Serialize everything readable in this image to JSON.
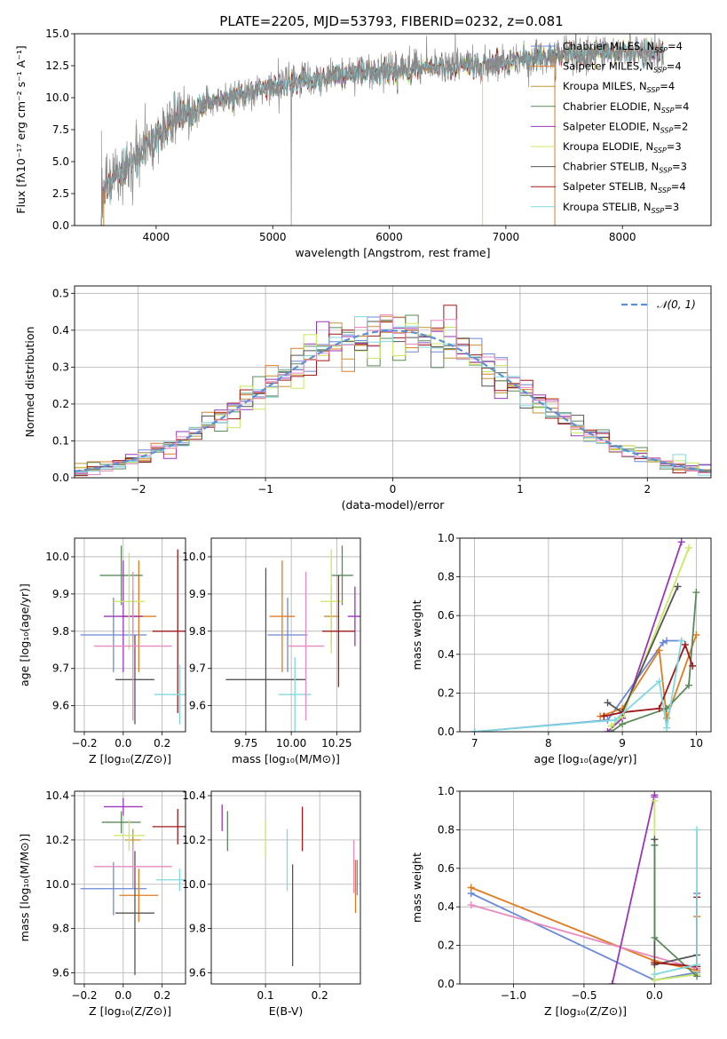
{
  "title": "PLATE=2205, MJD=53793, FIBERID=0232, z=0.081",
  "colors": {
    "c0": "#6a89d8",
    "c1": "#e07b20",
    "c2": "#c79232",
    "c3": "#5a8a5a",
    "c4": "#9a36b8",
    "c5": "#c8e860",
    "c6": "#555555",
    "c7": "#a01818",
    "c8": "#80d8e0",
    "data": "#888888",
    "pink": "#e88ac0",
    "grid": "#b0b0b0"
  },
  "chart_data": [
    {
      "type": "line",
      "title": "PLATE=2205, MJD=53793, FIBERID=0232, z=0.081",
      "xlabel": "wavelength [Angstrom, rest frame]",
      "ylabel": "Flux [fλ10⁻¹⁷ erg cm⁻² s⁻¹ A⁻¹]",
      "xlim": [
        3300,
        8760
      ],
      "ylim": [
        0,
        15
      ],
      "xticks": [
        4000,
        5000,
        6000,
        7000,
        8000
      ],
      "yticks": [
        0.0,
        2.5,
        5.0,
        7.5,
        10.0,
        12.5,
        15.0
      ],
      "legend": "upper-right",
      "data_series": {
        "name": "data",
        "x": [
          3530,
          3600,
          3800,
          4000,
          4200,
          4400,
          4600,
          4800,
          5000,
          5200,
          5400,
          5600,
          5800,
          6000,
          6200,
          6400,
          6600,
          6800,
          7000,
          7200,
          7400,
          7600,
          7800,
          8000,
          8200,
          8350
        ],
        "y": [
          2.5,
          3.3,
          5.1,
          7.0,
          8.5,
          9.3,
          10.0,
          10.5,
          11.0,
          11.3,
          11.5,
          11.8,
          12.0,
          12.1,
          12.2,
          12.4,
          12.6,
          12.7,
          12.8,
          13.0,
          13.2,
          13.4,
          13.5,
          13.6,
          13.6,
          13.5
        ]
      },
      "series": [
        {
          "name": "Chabrier MILES, N",
          "sub": "SSP",
          "suffix": "=4"
        },
        {
          "name": "Salpeter MILES, N",
          "sub": "SSP",
          "suffix": "=4"
        },
        {
          "name": "Kroupa MILES, N",
          "sub": "SSP",
          "suffix": "=4"
        },
        {
          "name": "Chabrier ELODIE, N",
          "sub": "SSP",
          "suffix": "=4"
        },
        {
          "name": "Salpeter ELODIE, N",
          "sub": "SSP",
          "suffix": "=2"
        },
        {
          "name": "Kroupa ELODIE, N",
          "sub": "SSP",
          "suffix": "=3"
        },
        {
          "name": "Chabrier STELIB, N",
          "sub": "SSP",
          "suffix": "=3"
        },
        {
          "name": "Salpeter STELIB, N",
          "sub": "SSP",
          "suffix": "=4"
        },
        {
          "name": "Kroupa STELIB, N",
          "sub": "SSP",
          "suffix": "=3"
        }
      ]
    },
    {
      "type": "bar",
      "xlabel": "(data-model)/error",
      "ylabel": "Normed distribution",
      "xlim": [
        -2.5,
        2.5
      ],
      "ylim": [
        0,
        0.52
      ],
      "xticks": [
        -2,
        -1,
        0,
        1,
        2
      ],
      "yticks": [
        0.0,
        0.1,
        0.2,
        0.3,
        0.4,
        0.5
      ],
      "bin_width": 0.1,
      "bin_start": -2.5,
      "reference": {
        "name": "𝒩(0, 1)",
        "mean": 0,
        "sigma": 1
      },
      "legend": "upper-right"
    },
    {
      "type": "scatter",
      "xlabel": "Z [log₁₀(Z/Z⊙)]",
      "ylabel": "age  [log₁₀(age/yr)]",
      "xlim": [
        -0.25,
        0.32
      ],
      "ylim": [
        9.53,
        10.05
      ],
      "xticks": [
        -0.2,
        0.0,
        0.2
      ],
      "yticks": [
        9.6,
        9.7,
        9.8,
        9.9,
        10.0
      ],
      "points": [
        {
          "x": -0.05,
          "xerr": 0.17,
          "y": 9.79,
          "yerr": 0.1,
          "c": "c0"
        },
        {
          "x": 0.08,
          "xerr": 0.09,
          "y": 9.84,
          "yerr": 0.15,
          "c": "c1"
        },
        {
          "x": 0.05,
          "xerr": 0.05,
          "y": 9.84,
          "yerr": 0.07,
          "c": "c2"
        },
        {
          "x": -0.01,
          "xerr": 0.11,
          "y": 9.95,
          "yerr": 0.08,
          "c": "c3"
        },
        {
          "x": 0.0,
          "xerr": 0.1,
          "y": 9.84,
          "yerr": 0.15,
          "c": "c4"
        },
        {
          "x": 0.03,
          "xerr": 0.08,
          "y": 9.88,
          "yerr": 0.13,
          "c": "c5"
        },
        {
          "x": 0.06,
          "xerr": 0.1,
          "y": 9.67,
          "yerr": 0.12,
          "c": "c6"
        },
        {
          "x": 0.28,
          "xerr": 0.13,
          "y": 9.8,
          "yerr": 0.22,
          "c": "c7"
        },
        {
          "x": 0.29,
          "xerr": 0.13,
          "y": 9.63,
          "yerr": 0.08,
          "c": "c8"
        },
        {
          "x": 0.05,
          "xerr": 0.2,
          "y": 9.76,
          "yerr": 0.2,
          "c": "pink"
        }
      ]
    },
    {
      "type": "scatter",
      "xlabel": "mass [log₁₀(M/M⊙)]",
      "xlim": [
        9.56,
        10.38
      ],
      "ylim": [
        9.53,
        10.05
      ],
      "xticks": [
        9.75,
        10.0,
        10.25
      ],
      "xticklabels": [
        "9.75",
        "10.00",
        "10.25"
      ],
      "yticks": [
        9.6,
        9.7,
        9.8,
        9.9,
        10.0
      ],
      "points": [
        {
          "x": 9.98,
          "xerr": 0.11,
          "y": 9.79,
          "yerr": 0.1,
          "c": "c0"
        },
        {
          "x": 9.95,
          "xerr": 0.07,
          "y": 9.84,
          "yerr": 0.15,
          "c": "c1"
        },
        {
          "x": 10.22,
          "xerr": 0.04,
          "y": 9.84,
          "yerr": 0.08,
          "c": "c2"
        },
        {
          "x": 10.28,
          "xerr": 0.06,
          "y": 9.95,
          "yerr": 0.08,
          "c": "c3"
        },
        {
          "x": 10.35,
          "xerr": 0.04,
          "y": 9.84,
          "yerr": 0.08,
          "c": "c4"
        },
        {
          "x": 10.22,
          "xerr": 0.06,
          "y": 9.88,
          "yerr": 0.14,
          "c": "c5"
        },
        {
          "x": 9.86,
          "xerr": 0.22,
          "y": 9.67,
          "yerr": 0.3,
          "c": "c6"
        },
        {
          "x": 10.26,
          "xerr": 0.09,
          "y": 9.8,
          "yerr": 0.15,
          "c": "c7"
        },
        {
          "x": 10.02,
          "xerr": 0.09,
          "y": 9.63,
          "yerr": 0.1,
          "c": "c8"
        },
        {
          "x": 10.08,
          "xerr": 0.1,
          "y": 9.76,
          "yerr": 0.2,
          "c": "pink"
        }
      ]
    },
    {
      "type": "line",
      "xlabel": "age  [log₁₀(age/yr)]",
      "ylabel": "mass weight",
      "xlim": [
        6.8,
        10.2
      ],
      "ylim": [
        0,
        1.0
      ],
      "xticks": [
        7,
        8,
        9,
        10
      ],
      "yticks": [
        0.0,
        0.2,
        0.4,
        0.6,
        0.8,
        1.0
      ],
      "series": [
        {
          "c": "c0",
          "x": [
            7.0,
            8.8,
            9.55,
            9.6,
            9.8
          ],
          "y": [
            0.0,
            0.06,
            0.46,
            0.47,
            0.47
          ]
        },
        {
          "c": "c1",
          "x": [
            8.7,
            9.0,
            9.5,
            9.6,
            10.0
          ],
          "y": [
            0.08,
            0.12,
            0.42,
            0.07,
            0.5
          ]
        },
        {
          "c": "c3",
          "x": [
            8.85,
            9.0,
            9.6,
            9.9,
            10.0
          ],
          "y": [
            0.0,
            0.04,
            0.12,
            0.24,
            0.72
          ]
        },
        {
          "c": "c4",
          "x": [
            8.8,
            9.0,
            9.8
          ],
          "y": [
            0.0,
            0.07,
            0.98
          ]
        },
        {
          "c": "c5",
          "x": [
            8.85,
            9.0,
            9.9
          ],
          "y": [
            0.03,
            0.08,
            0.95
          ]
        },
        {
          "c": "c6",
          "x": [
            8.8,
            9.0,
            9.75
          ],
          "y": [
            0.15,
            0.1,
            0.75
          ]
        },
        {
          "c": "c7",
          "x": [
            8.75,
            9.0,
            9.5,
            9.85,
            9.95
          ],
          "y": [
            0.08,
            0.1,
            0.12,
            0.45,
            0.34
          ]
        },
        {
          "c": "c8",
          "x": [
            7.0,
            8.9,
            9.5,
            9.6,
            9.8
          ],
          "y": [
            0.0,
            0.06,
            0.26,
            0.02,
            0.47
          ]
        }
      ]
    },
    {
      "type": "scatter",
      "xlabel": "Z [log₁₀(Z/Z⊙)]",
      "ylabel": "mass [log₁₀(M/M⊙)]",
      "xlim": [
        -0.25,
        0.32
      ],
      "ylim": [
        9.55,
        10.42
      ],
      "xticks": [
        -0.2,
        0.0,
        0.2
      ],
      "yticks": [
        9.6,
        9.8,
        10.0,
        10.2,
        10.4
      ],
      "points": [
        {
          "x": -0.05,
          "xerr": 0.17,
          "y": 9.98,
          "yerr": 0.12,
          "c": "c0"
        },
        {
          "x": 0.08,
          "xerr": 0.1,
          "y": 9.95,
          "yerr": 0.12,
          "c": "c1"
        },
        {
          "x": 0.05,
          "xerr": 0.04,
          "y": 10.2,
          "yerr": 0.05,
          "c": "c2"
        },
        {
          "x": -0.01,
          "xerr": 0.1,
          "y": 10.28,
          "yerr": 0.05,
          "c": "c3"
        },
        {
          "x": 0.0,
          "xerr": 0.1,
          "y": 10.35,
          "yerr": 0.04,
          "c": "c4"
        },
        {
          "x": 0.03,
          "xerr": 0.08,
          "y": 10.22,
          "yerr": 0.07,
          "c": "c5"
        },
        {
          "x": 0.06,
          "xerr": 0.1,
          "y": 9.87,
          "yerr": 0.28,
          "c": "c6"
        },
        {
          "x": 0.28,
          "xerr": 0.13,
          "y": 10.26,
          "yerr": 0.08,
          "c": "c7"
        },
        {
          "x": 0.29,
          "xerr": 0.12,
          "y": 10.02,
          "yerr": 0.05,
          "c": "c8"
        },
        {
          "x": 0.05,
          "xerr": 0.2,
          "y": 10.08,
          "yerr": 0.1,
          "c": "pink"
        }
      ]
    },
    {
      "type": "scatter",
      "xlabel": "E(B-V)",
      "xlim": [
        0.0,
        0.275
      ],
      "ylim": [
        9.55,
        10.42
      ],
      "xticks": [
        0.1,
        0.2
      ],
      "yticks": [
        9.6,
        9.8,
        10.0,
        10.2,
        10.4
      ],
      "points": [
        {
          "x": 0.02,
          "y": 10.3,
          "yerr": 0.06,
          "c": "c4"
        },
        {
          "x": 0.03,
          "y": 10.24,
          "yerr": 0.09,
          "c": "c3"
        },
        {
          "x": 0.1,
          "y": 10.21,
          "yerr": 0.08,
          "c": "c5"
        },
        {
          "x": 0.14,
          "y": 10.11,
          "yerr": 0.14,
          "c": "c8"
        },
        {
          "x": 0.15,
          "y": 9.86,
          "yerr": 0.23,
          "c": "c6"
        },
        {
          "x": 0.168,
          "y": 10.25,
          "yerr": 0.1,
          "c": "c7"
        },
        {
          "x": 0.263,
          "y": 10.08,
          "yerr": 0.12,
          "c": "pink"
        },
        {
          "x": 0.266,
          "y": 9.99,
          "yerr": 0.12,
          "c": "c1"
        },
        {
          "x": 0.269,
          "y": 10.03,
          "yerr": 0.08,
          "c": "c0"
        }
      ]
    },
    {
      "type": "line",
      "xlabel": "Z [log₁₀(Z/Z⊙)]",
      "ylabel": "mass weight",
      "xlim": [
        -1.38,
        0.4
      ],
      "ylim": [
        0,
        1.0
      ],
      "xticks": [
        -1.0,
        -0.5,
        0.0
      ],
      "xticklabels": [
        "−1.0",
        "−0.5",
        "0.0"
      ],
      "yticks": [
        0.0,
        0.2,
        0.4,
        0.6,
        0.8,
        1.0
      ],
      "series": [
        {
          "c": "c0",
          "x": [
            -1.3,
            0.0,
            0.3,
            0.3
          ],
          "y": [
            0.47,
            0.02,
            0.06,
            0.47
          ]
        },
        {
          "c": "c1",
          "x": [
            -1.3,
            0.0,
            0.3,
            0.3
          ],
          "y": [
            0.5,
            0.12,
            0.07,
            0.35
          ]
        },
        {
          "c": "pink",
          "x": [
            -1.3,
            0.0,
            0.3
          ],
          "y": [
            0.41,
            0.14,
            0.08
          ]
        },
        {
          "c": "c4",
          "x": [
            -0.3,
            0.0,
            0.0
          ],
          "y": [
            0.0,
            0.98,
            0.97
          ]
        },
        {
          "c": "c5",
          "x": [
            0.0,
            0.0,
            0.3
          ],
          "y": [
            0.95,
            0.02,
            0.05
          ]
        },
        {
          "c": "c6",
          "x": [
            0.0,
            0.0,
            0.3
          ],
          "y": [
            0.75,
            0.1,
            0.15
          ]
        },
        {
          "c": "c3",
          "x": [
            0.0,
            0.0,
            0.3
          ],
          "y": [
            0.72,
            0.24,
            0.04
          ]
        },
        {
          "c": "c7",
          "x": [
            0.0,
            0.3,
            0.3
          ],
          "y": [
            0.11,
            0.09,
            0.45
          ]
        },
        {
          "c": "c8",
          "x": [
            0.0,
            0.3,
            0.3
          ],
          "y": [
            0.05,
            0.1,
            0.8
          ]
        }
      ]
    }
  ]
}
